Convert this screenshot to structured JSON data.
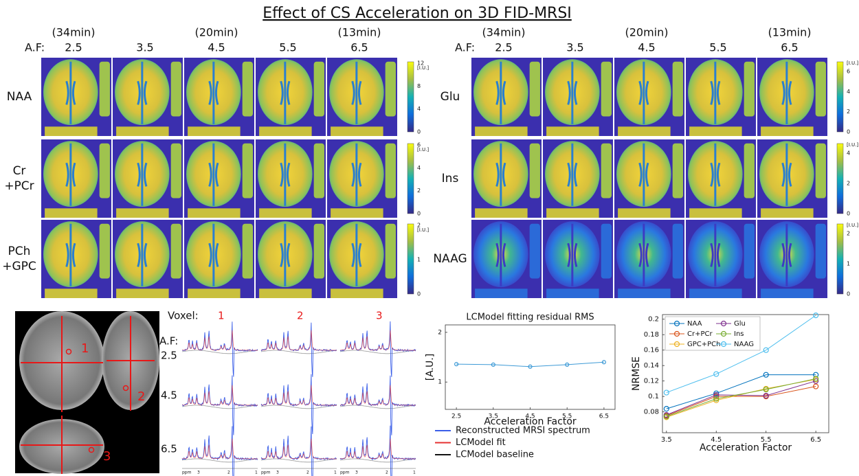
{
  "title": "Effect of CS Acceleration on 3D FID-MRSI",
  "map_panels": [
    {
      "af_label": "A.F:",
      "columns": [
        {
          "time": "(34min)",
          "af": 2.5
        },
        {
          "af": 3.5
        },
        {
          "time": "(20min)",
          "af": 4.5
        },
        {
          "af": 5.5
        },
        {
          "time": "(13min)",
          "af": 6.5
        }
      ],
      "rows": [
        {
          "label": [
            "NAA"
          ],
          "unit": "[I.U.]",
          "ticks": [
            12,
            8,
            4,
            0
          ]
        },
        {
          "label": [
            "Cr",
            "+PCr"
          ],
          "unit": "[I.U.]",
          "ticks": [
            6,
            4,
            2,
            0
          ]
        },
        {
          "label": [
            "PCh",
            "+GPC"
          ],
          "unit": "[I.U.]",
          "ticks": [
            2,
            1,
            0
          ]
        }
      ]
    },
    {
      "af_label": "A.F:",
      "columns": [
        {
          "time": "(34min)",
          "af": 2.5
        },
        {
          "af": 3.5
        },
        {
          "time": "(20min)",
          "af": 4.5
        },
        {
          "af": 5.5
        },
        {
          "time": "(13min)",
          "af": 6.5
        }
      ],
      "rows": [
        {
          "label": [
            "Glu"
          ],
          "unit": "[I.U.]",
          "ticks": [
            6,
            4,
            2,
            0
          ]
        },
        {
          "label": [
            "Ins"
          ],
          "unit": "[I.U.]",
          "ticks": [
            4,
            2,
            0
          ]
        },
        {
          "label": [
            "NAAG"
          ],
          "unit": "[I.U.]",
          "ticks": [
            2,
            1,
            0
          ]
        }
      ]
    }
  ],
  "voxel_panel": {
    "voxel_label": "Voxel:",
    "voxels": [
      1,
      2,
      3
    ],
    "af_label": "A.F:",
    "afs": [
      2.5,
      4.5,
      6.5
    ],
    "ppm_ticks": [
      "ppm",
      3,
      2,
      1
    ],
    "legend": [
      {
        "name": "Reconstructed MRSI spectrum",
        "color": "#3a5ee8"
      },
      {
        "name": "LCModel fit",
        "color": "#e53030"
      },
      {
        "name": "LCModel baseline",
        "color": "#111111"
      }
    ]
  },
  "chart_data": [
    {
      "type": "line",
      "title": "LCModel fitting residual RMS",
      "xlabel": "Acceleration Factor",
      "ylabel": "[A.U.]",
      "x": [
        2.5,
        3.5,
        4.5,
        5.5,
        6.5
      ],
      "values": [
        1.36,
        1.35,
        1.31,
        1.35,
        1.4
      ],
      "color": "#3d9ad6",
      "xlim": [
        2.2,
        6.8
      ],
      "xticks": [
        2.5,
        3.5,
        4.5,
        5.5,
        6.5
      ],
      "ylim": [
        0.45,
        2.15
      ],
      "yticks": [
        1,
        2
      ]
    },
    {
      "type": "line",
      "xlabel": "Acceleration Factor",
      "ylabel": "NRMSE",
      "x": [
        3.5,
        4.5,
        5.5,
        6.5
      ],
      "series": [
        {
          "name": "NAA",
          "color": "#0072bd",
          "values": [
            0.084,
            0.104,
            0.128,
            0.128
          ]
        },
        {
          "name": "Cr+PCr",
          "color": "#d95319",
          "values": [
            0.075,
            0.1,
            0.1,
            0.113
          ]
        },
        {
          "name": "GPC+PCh",
          "color": "#edb120",
          "values": [
            0.073,
            0.095,
            0.11,
            0.122
          ]
        },
        {
          "name": "Glu",
          "color": "#7e2f8e",
          "values": [
            0.076,
            0.102,
            0.101,
            0.12
          ]
        },
        {
          "name": "Ins",
          "color": "#77ac30",
          "values": [
            0.074,
            0.097,
            0.109,
            0.123
          ]
        },
        {
          "name": "NAAG",
          "color": "#4dbeee",
          "values": [
            0.105,
            0.129,
            0.16,
            0.205
          ]
        }
      ],
      "xlim": [
        3.42,
        6.76
      ],
      "xticks": [
        3.5,
        4.5,
        5.5,
        6.5
      ],
      "ylim": [
        0.053,
        0.206
      ],
      "yticks": [
        0.08,
        0.1,
        0.12,
        0.14,
        0.16,
        0.18,
        0.2
      ],
      "legend": "upper left"
    }
  ]
}
